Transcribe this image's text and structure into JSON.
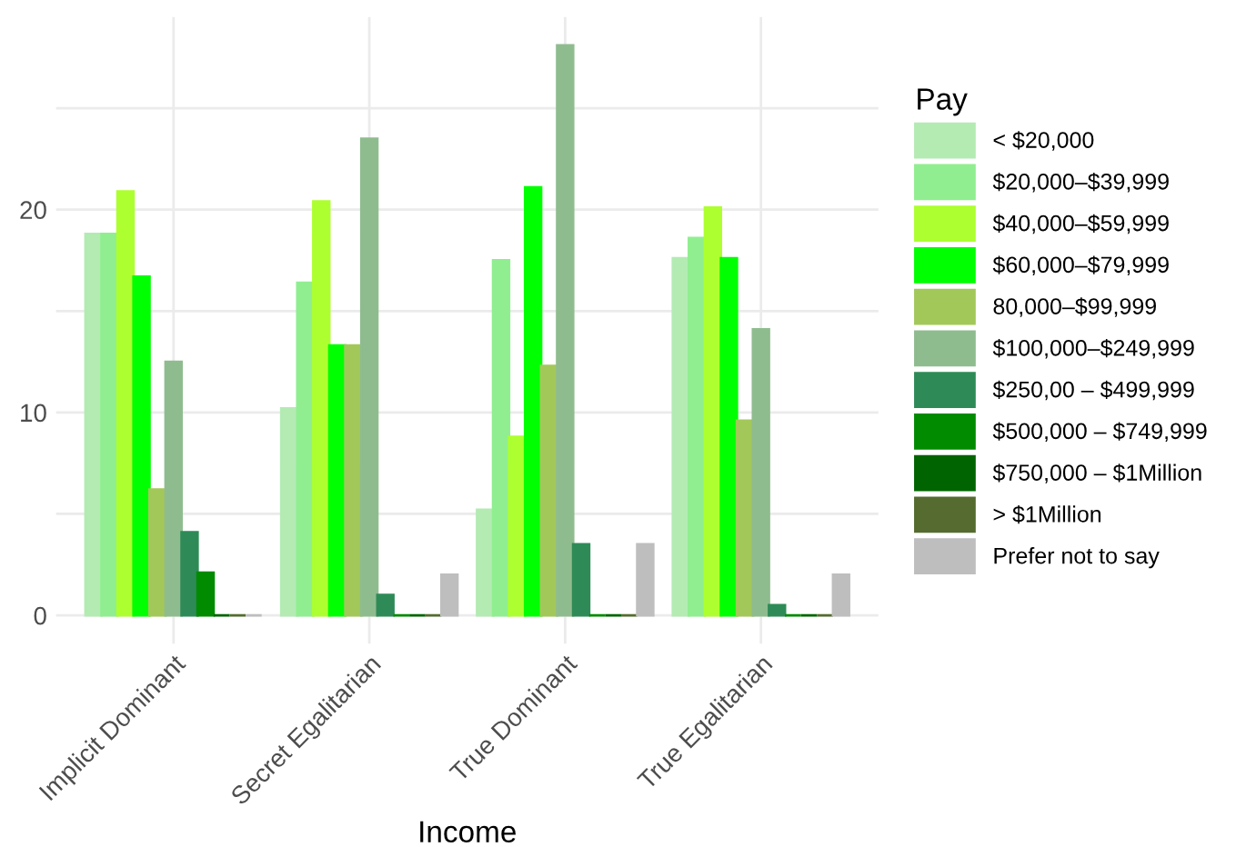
{
  "chart_data": {
    "type": "bar",
    "xlabel": "Income",
    "legend_title": "Pay",
    "legend": "right",
    "grid": true,
    "categories": [
      "Implicit Dominant",
      "Secret Egalitarian",
      "True Dominant",
      "True Egalitarian"
    ],
    "ylim": [
      -1.4,
      29.5
    ],
    "yticks": [
      0,
      {
        "value": 5,
        "label": null
      },
      10,
      {
        "value": 15,
        "label": null
      },
      20,
      {
        "value": 25,
        "label": null
      }
    ],
    "series": [
      {
        "name": "< $20,000",
        "color": "#b3ebb3",
        "values": [
          18.8,
          10.2,
          5.2,
          17.6
        ]
      },
      {
        "name": "$20,000–$39,999",
        "color": "#90ee90",
        "values": [
          18.8,
          16.4,
          17.5,
          18.6
        ]
      },
      {
        "name": "$40,000–$59,999",
        "color": "#adff2f",
        "values": [
          20.9,
          20.4,
          8.8,
          20.1
        ]
      },
      {
        "name": "$60,000–$79,999",
        "color": "#00ff00",
        "values": [
          16.7,
          13.3,
          21.1,
          17.6
        ]
      },
      {
        "name": "80,000–$99,999",
        "color": "#a3c85a",
        "values": [
          6.2,
          13.3,
          12.3,
          9.6
        ]
      },
      {
        "name": "$100,000–$249,999",
        "color": "#8fbc8f",
        "values": [
          12.5,
          23.5,
          28.1,
          14.1
        ]
      },
      {
        "name": "$250,00 – $499,999",
        "color": "#2e8b57",
        "values": [
          4.1,
          1.0,
          3.5,
          0.5
        ]
      },
      {
        "name": "$500,000 – $749,999",
        "color": "#008b00",
        "values": [
          2.1,
          0,
          0,
          0
        ]
      },
      {
        "name": "$750,000 – $1Million",
        "color": "#006400",
        "values": [
          0,
          0,
          0,
          0
        ]
      },
      {
        "name": "> $1Million",
        "color": "#556b2f",
        "values": [
          0,
          0,
          0,
          0
        ]
      },
      {
        "name": "Prefer not to say",
        "color": "#bebebe",
        "values": [
          0,
          2.0,
          3.5,
          2.0
        ]
      }
    ]
  }
}
